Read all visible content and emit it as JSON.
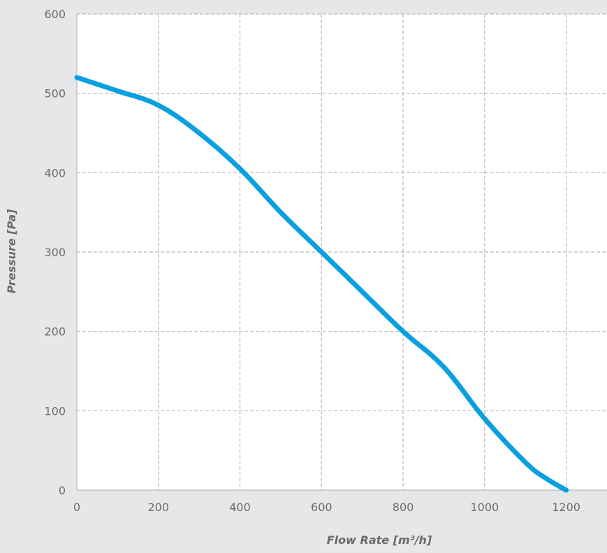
{
  "chart_data": {
    "type": "line",
    "title": "",
    "xlabel": "Flow Rate [m³/h]",
    "ylabel": "Pressure [Pa]",
    "xlim": [
      0,
      1300
    ],
    "ylim": [
      0,
      600
    ],
    "x_ticks": [
      0,
      200,
      400,
      600,
      800,
      1000,
      1200
    ],
    "y_ticks": [
      0,
      100,
      200,
      300,
      400,
      500,
      600
    ],
    "grid": true,
    "grid_style": "dashed",
    "legend": "none",
    "series": [
      {
        "color": "#0aa0e0",
        "x": [
          0,
          100,
          200,
          300,
          400,
          500,
          600,
          700,
          800,
          900,
          1000,
          1100,
          1150,
          1200
        ],
        "y": [
          520,
          503,
          485,
          450,
          405,
          350,
          300,
          250,
          200,
          155,
          90,
          35,
          15,
          0
        ]
      }
    ],
    "colors": {
      "background": "#e6e7e8",
      "plot_background": "#ffffff",
      "grid": "#b9b9b9",
      "text": "#6b6b6b",
      "line": "#0aa0e0"
    }
  }
}
